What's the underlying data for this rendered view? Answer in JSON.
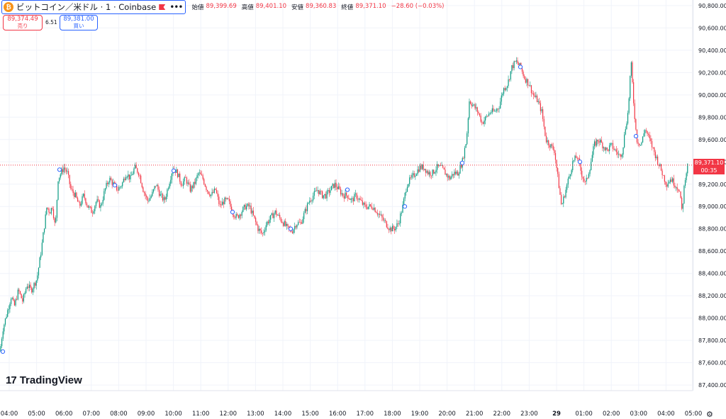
{
  "header": {
    "symbol": "ビットコイン／米ドル · 1 · Coinbase",
    "btc_glyph": "₿",
    "more": "•••",
    "open_label": "始値",
    "open": "89,399.69",
    "high_label": "高値",
    "high": "89,401.10",
    "low_label": "安値",
    "low": "89,360.83",
    "close_label": "終値",
    "close": "89,371.10",
    "change": "−28.60 (−0.03%)"
  },
  "quote": {
    "sell_price": "89,374.49",
    "sell_label": "売り",
    "spread": "6.51",
    "buy_price": "89,381.00",
    "buy_label": "買い"
  },
  "current_price": {
    "value": "89,371.10",
    "countdown": "00:35"
  },
  "brand": "TradingView",
  "colors": {
    "up": "#089981",
    "down": "#f23645",
    "grid": "#f0f3fa",
    "marker": "#2962ff"
  },
  "chart_data": {
    "type": "candlestick",
    "y_ticks": [
      87400,
      87600,
      87800,
      88000,
      88200,
      88400,
      88600,
      88800,
      89000,
      89200,
      89400,
      89600,
      89800,
      90000,
      90200,
      90400,
      90600,
      90800
    ],
    "y_tick_labels": [
      "87,400.00",
      "87,600.00",
      "87,800.00",
      "88,000.00",
      "88,200.00",
      "88,400.00",
      "88,600.00",
      "88,800.00",
      "89,000.00",
      "89,200.00",
      "89,400.00",
      "89,600.00",
      "89,800.00",
      "90,000.00",
      "90,200.00",
      "90,400.00",
      "90,600.00",
      "90,800.00"
    ],
    "x_labels": [
      "04:00",
      "05:00",
      "06:00",
      "07:00",
      "08:00",
      "09:00",
      "10:00",
      "11:00",
      "12:00",
      "13:00",
      "14:00",
      "15:00",
      "16:00",
      "17:00",
      "18:00",
      "19:00",
      "20:00",
      "21:00",
      "22:00",
      "23:00",
      "29",
      "01:00",
      "02:00",
      "03:00",
      "04:00",
      "05:00"
    ],
    "ylim": [
      87350,
      90850
    ],
    "last_price": 89371.1,
    "path": [
      [
        0,
        87700
      ],
      [
        4,
        87900
      ],
      [
        10,
        88050
      ],
      [
        16,
        88200
      ],
      [
        20,
        88100
      ],
      [
        26,
        88250
      ],
      [
        32,
        88150
      ],
      [
        38,
        88300
      ],
      [
        44,
        88250
      ],
      [
        52,
        88350
      ],
      [
        58,
        88600
      ],
      [
        62,
        88800
      ],
      [
        66,
        89000
      ],
      [
        70,
        88950
      ],
      [
        74,
        89000
      ],
      [
        78,
        88800
      ],
      [
        82,
        89250
      ],
      [
        86,
        89300
      ],
      [
        90,
        89350
      ],
      [
        95,
        89300
      ],
      [
        100,
        89150
      ],
      [
        106,
        89100
      ],
      [
        112,
        89000
      ],
      [
        118,
        89100
      ],
      [
        124,
        89000
      ],
      [
        130,
        88950
      ],
      [
        136,
        89050
      ],
      [
        142,
        89000
      ],
      [
        148,
        89150
      ],
      [
        154,
        89250
      ],
      [
        160,
        89200
      ],
      [
        166,
        89150
      ],
      [
        172,
        89200
      ],
      [
        178,
        89300
      ],
      [
        184,
        89250
      ],
      [
        190,
        89350
      ],
      [
        196,
        89300
      ],
      [
        202,
        89150
      ],
      [
        208,
        89050
      ],
      [
        214,
        89100
      ],
      [
        220,
        89200
      ],
      [
        226,
        89100
      ],
      [
        232,
        89050
      ],
      [
        238,
        89200
      ],
      [
        244,
        89350
      ],
      [
        250,
        89300
      ],
      [
        256,
        89200
      ],
      [
        262,
        89250
      ],
      [
        268,
        89150
      ],
      [
        274,
        89200
      ],
      [
        280,
        89300
      ],
      [
        286,
        89250
      ],
      [
        292,
        89150
      ],
      [
        298,
        89100
      ],
      [
        304,
        89150
      ],
      [
        310,
        89000
      ],
      [
        316,
        89050
      ],
      [
        322,
        89050
      ],
      [
        328,
        88950
      ],
      [
        334,
        88900
      ],
      [
        340,
        88950
      ],
      [
        346,
        89000
      ],
      [
        352,
        89000
      ],
      [
        358,
        88900
      ],
      [
        364,
        88800
      ],
      [
        370,
        88750
      ],
      [
        376,
        88850
      ],
      [
        382,
        88900
      ],
      [
        388,
        88950
      ],
      [
        394,
        88900
      ],
      [
        400,
        88850
      ],
      [
        406,
        88800
      ],
      [
        412,
        88780
      ],
      [
        418,
        88850
      ],
      [
        424,
        88850
      ],
      [
        430,
        88950
      ],
      [
        436,
        89050
      ],
      [
        442,
        89100
      ],
      [
        448,
        89150
      ],
      [
        454,
        89100
      ],
      [
        460,
        89100
      ],
      [
        466,
        89150
      ],
      [
        472,
        89200
      ],
      [
        478,
        89150
      ],
      [
        484,
        89100
      ],
      [
        490,
        89100
      ],
      [
        496,
        89050
      ],
      [
        502,
        89100
      ],
      [
        508,
        89050
      ],
      [
        514,
        89000
      ],
      [
        520,
        89000
      ],
      [
        526,
        89000
      ],
      [
        532,
        88950
      ],
      [
        538,
        88900
      ],
      [
        544,
        88850
      ],
      [
        550,
        88800
      ],
      [
        556,
        88800
      ],
      [
        562,
        88850
      ],
      [
        568,
        89000
      ],
      [
        574,
        89200
      ],
      [
        580,
        89250
      ],
      [
        586,
        89300
      ],
      [
        592,
        89350
      ],
      [
        598,
        89350
      ],
      [
        604,
        89300
      ],
      [
        610,
        89300
      ],
      [
        616,
        89350
      ],
      [
        622,
        89350
      ],
      [
        628,
        89300
      ],
      [
        634,
        89250
      ],
      [
        640,
        89300
      ],
      [
        646,
        89300
      ],
      [
        652,
        89400
      ],
      [
        658,
        89600
      ],
      [
        662,
        89950
      ],
      [
        668,
        89900
      ],
      [
        674,
        89850
      ],
      [
        680,
        89750
      ],
      [
        686,
        89800
      ],
      [
        692,
        89850
      ],
      [
        698,
        89850
      ],
      [
        704,
        89900
      ],
      [
        710,
        90050
      ],
      [
        716,
        90100
      ],
      [
        722,
        90250
      ],
      [
        728,
        90300
      ],
      [
        734,
        90250
      ],
      [
        740,
        90150
      ],
      [
        746,
        90100
      ],
      [
        752,
        90000
      ],
      [
        758,
        89950
      ],
      [
        764,
        89850
      ],
      [
        770,
        89600
      ],
      [
        776,
        89550
      ],
      [
        782,
        89500
      ],
      [
        788,
        89200
      ],
      [
        792,
        89000
      ],
      [
        796,
        89100
      ],
      [
        802,
        89250
      ],
      [
        808,
        89400
      ],
      [
        814,
        89450
      ],
      [
        820,
        89300
      ],
      [
        826,
        89200
      ],
      [
        832,
        89350
      ],
      [
        838,
        89550
      ],
      [
        844,
        89600
      ],
      [
        850,
        89550
      ],
      [
        856,
        89500
      ],
      [
        862,
        89550
      ],
      [
        868,
        89500
      ],
      [
        874,
        89450
      ],
      [
        878,
        89500
      ],
      [
        882,
        89700
      ],
      [
        886,
        89850
      ],
      [
        890,
        90300
      ],
      [
        894,
        89900
      ],
      [
        898,
        89600
      ],
      [
        904,
        89550
      ],
      [
        910,
        89700
      ],
      [
        916,
        89600
      ],
      [
        922,
        89500
      ],
      [
        928,
        89400
      ],
      [
        934,
        89300
      ],
      [
        940,
        89200
      ],
      [
        946,
        89250
      ],
      [
        952,
        89200
      ],
      [
        958,
        89150
      ],
      [
        962,
        88950
      ],
      [
        966,
        89250
      ],
      [
        970,
        89371
      ]
    ],
    "markers": [
      [
        4,
        87700
      ],
      [
        84,
        89330
      ],
      [
        162,
        89190
      ],
      [
        245,
        89320
      ],
      [
        328,
        88950
      ],
      [
        410,
        88800
      ],
      [
        490,
        89150
      ],
      [
        571,
        89000
      ],
      [
        652,
        89390
      ],
      [
        734,
        90250
      ],
      [
        818,
        89400
      ],
      [
        897,
        89630
      ]
    ]
  }
}
